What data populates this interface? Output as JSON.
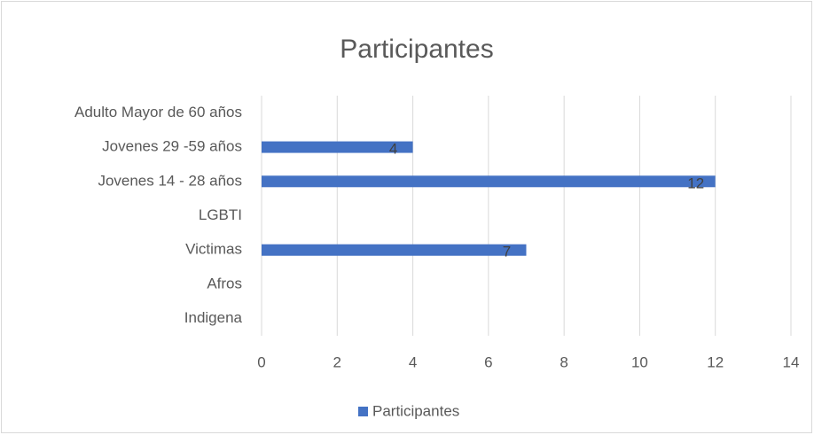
{
  "chart_data": {
    "type": "bar",
    "orientation": "horizontal",
    "title": "Participantes",
    "categories": [
      "Adulto Mayor de 60 años",
      "Jovenes 29 -59 años",
      "Jovenes 14 - 28 años",
      "LGBTI",
      "Victimas",
      "Afros",
      "Indigena"
    ],
    "series": [
      {
        "name": "Participantes",
        "color": "#4472c4",
        "values": [
          null,
          4,
          12,
          null,
          7,
          null,
          null
        ]
      }
    ],
    "xlim": [
      0,
      14
    ],
    "xticks": [
      0,
      2,
      4,
      6,
      8,
      10,
      12,
      14
    ],
    "grid": true,
    "legend": "bottom"
  }
}
